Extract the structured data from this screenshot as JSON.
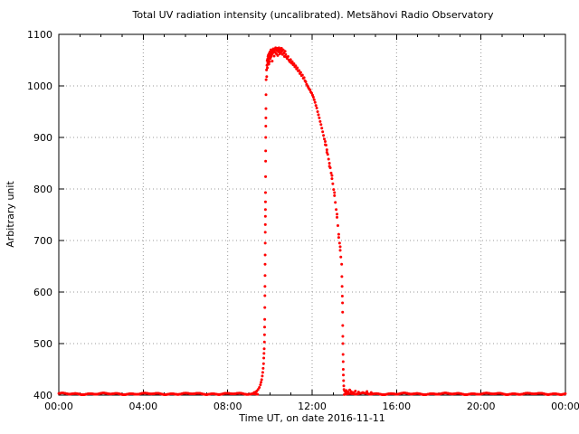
{
  "chart_data": {
    "type": "scatter",
    "title": "Total UV radiation intensity (uncalibrated). Metsähovi Radio Observatory",
    "xlabel": "Time UT, on date 2016-11-11",
    "ylabel": "Arbitrary unit",
    "xlim": [
      0,
      24
    ],
    "ylim": [
      400,
      1100
    ],
    "x_ticks": [
      {
        "t": 0,
        "label": "00:00"
      },
      {
        "t": 4,
        "label": "04:00"
      },
      {
        "t": 8,
        "label": "08:00"
      },
      {
        "t": 12,
        "label": "12:00"
      },
      {
        "t": 16,
        "label": "16:00"
      },
      {
        "t": 20,
        "label": "20:00"
      },
      {
        "t": 24,
        "label": "00:00"
      }
    ],
    "x_minor_step_hours": 1,
    "y_ticks": [
      {
        "v": 400,
        "label": "400"
      },
      {
        "v": 500,
        "label": "500"
      },
      {
        "v": 600,
        "label": "600"
      },
      {
        "v": 700,
        "label": "700"
      },
      {
        "v": 800,
        "label": "800"
      },
      {
        "v": 900,
        "label": "900"
      },
      {
        "v": 1000,
        "label": "1000"
      },
      {
        "v": 1100,
        "label": "1100"
      }
    ],
    "grid": {
      "style": "dotted",
      "color": "#9a9a9a",
      "x_lines_hours": [
        4,
        8,
        12,
        16,
        20
      ],
      "y_lines": [
        500,
        600,
        700,
        800,
        900,
        1000
      ]
    },
    "legend": "none",
    "series": [
      {
        "name": "uv-intensity",
        "marker": "dot",
        "marker_color": "#ff0000",
        "marker_radius": 1.5,
        "baseline_segments": [
          {
            "t_start": 0.0,
            "t_end": 9.42,
            "value": 402.5,
            "step": 0.02,
            "noise_amp": 1.3
          },
          {
            "t_start": 13.52,
            "t_end": 24.0,
            "value": 402.5,
            "step": 0.02,
            "noise_amp": 1.3
          }
        ],
        "points": [
          [
            9.25,
            405
          ],
          [
            9.32,
            406
          ],
          [
            9.38,
            408
          ],
          [
            9.44,
            411
          ],
          [
            9.5,
            415
          ],
          [
            9.55,
            420
          ],
          [
            9.58,
            425
          ],
          [
            9.61,
            430
          ],
          [
            9.64,
            437
          ],
          [
            9.66,
            444
          ],
          [
            9.68,
            452
          ],
          [
            9.7,
            461
          ],
          [
            9.71,
            472
          ],
          [
            9.72,
            481
          ],
          [
            9.73,
            490
          ],
          [
            9.74,
            503
          ],
          [
            9.745,
            517
          ],
          [
            9.75,
            532
          ],
          [
            9.755,
            547
          ],
          [
            9.76,
            570
          ],
          [
            9.763,
            593
          ],
          [
            9.766,
            611
          ],
          [
            9.77,
            632
          ],
          [
            9.772,
            654
          ],
          [
            9.775,
            672
          ],
          [
            9.778,
            695
          ],
          [
            9.78,
            716
          ],
          [
            9.783,
            731
          ],
          [
            9.786,
            747
          ],
          [
            9.788,
            760
          ],
          [
            9.79,
            775
          ],
          [
            9.792,
            793
          ],
          [
            9.795,
            824
          ],
          [
            9.798,
            854
          ],
          [
            9.8,
            874
          ],
          [
            9.803,
            900
          ],
          [
            9.806,
            922
          ],
          [
            9.81,
            938
          ],
          [
            9.813,
            956
          ],
          [
            9.816,
            983
          ],
          [
            9.82,
            1012
          ],
          [
            9.84,
            1031
          ],
          [
            9.85,
            1018
          ],
          [
            9.86,
            1040
          ],
          [
            9.87,
            1049
          ],
          [
            9.88,
            1035
          ],
          [
            9.89,
            1052
          ],
          [
            9.9,
            1044
          ],
          [
            9.91,
            1057
          ],
          [
            9.92,
            1047
          ],
          [
            9.93,
            1060
          ],
          [
            9.94,
            1050
          ],
          [
            9.95,
            1042
          ],
          [
            9.96,
            1055
          ],
          [
            9.97,
            1063
          ],
          [
            9.98,
            1047
          ],
          [
            9.99,
            1058
          ],
          [
            10.0,
            1066
          ],
          [
            10.02,
            1053
          ],
          [
            10.03,
            1062
          ],
          [
            10.05,
            1070
          ],
          [
            10.06,
            1057
          ],
          [
            10.08,
            1065
          ],
          [
            10.09,
            1061
          ],
          [
            10.11,
            1048
          ],
          [
            10.12,
            1069
          ],
          [
            10.14,
            1064
          ],
          [
            10.16,
            1072
          ],
          [
            10.18,
            1068
          ],
          [
            10.2,
            1058
          ],
          [
            10.22,
            1071
          ],
          [
            10.25,
            1065
          ],
          [
            10.27,
            1074
          ],
          [
            10.29,
            1070
          ],
          [
            10.31,
            1062
          ],
          [
            10.33,
            1073
          ],
          [
            10.35,
            1068
          ],
          [
            10.37,
            1059
          ],
          [
            10.39,
            1072
          ],
          [
            10.41,
            1066
          ],
          [
            10.43,
            1074
          ],
          [
            10.45,
            1069
          ],
          [
            10.47,
            1062
          ],
          [
            10.5,
            1071
          ],
          [
            10.52,
            1065
          ],
          [
            10.55,
            1073
          ],
          [
            10.57,
            1068
          ],
          [
            10.6,
            1061
          ],
          [
            10.63,
            1070
          ],
          [
            10.66,
            1064
          ],
          [
            10.69,
            1057
          ],
          [
            10.72,
            1067
          ],
          [
            10.75,
            1061
          ],
          [
            10.78,
            1056
          ],
          [
            10.82,
            1053
          ],
          [
            10.86,
            1057
          ],
          [
            10.9,
            1050
          ],
          [
            10.94,
            1047
          ],
          [
            10.98,
            1051
          ],
          [
            11.02,
            1044
          ],
          [
            11.06,
            1047
          ],
          [
            11.1,
            1041
          ],
          [
            11.14,
            1043
          ],
          [
            11.18,
            1037
          ],
          [
            11.22,
            1039
          ],
          [
            11.26,
            1033
          ],
          [
            11.3,
            1035
          ],
          [
            11.34,
            1029
          ],
          [
            11.38,
            1030
          ],
          [
            11.42,
            1024
          ],
          [
            11.46,
            1026
          ],
          [
            11.5,
            1020
          ],
          [
            11.54,
            1021
          ],
          [
            11.58,
            1015
          ],
          [
            11.62,
            1016
          ],
          [
            11.66,
            1010
          ],
          [
            11.7,
            1008
          ],
          [
            11.74,
            1003
          ],
          [
            11.78,
            1000
          ],
          [
            11.82,
            997
          ],
          [
            11.86,
            994
          ],
          [
            11.9,
            992
          ],
          [
            11.94,
            988
          ],
          [
            11.98,
            986
          ],
          [
            12.02,
            982
          ],
          [
            12.06,
            978
          ],
          [
            12.1,
            973
          ],
          [
            12.14,
            968
          ],
          [
            12.18,
            962
          ],
          [
            12.22,
            957
          ],
          [
            12.26,
            950
          ],
          [
            12.3,
            944
          ],
          [
            12.34,
            938
          ],
          [
            12.38,
            931
          ],
          [
            12.42,
            925
          ],
          [
            12.46,
            918
          ],
          [
            12.5,
            911
          ],
          [
            12.54,
            904
          ],
          [
            12.58,
            897
          ],
          [
            12.62,
            892
          ],
          [
            12.62,
            886
          ],
          [
            12.66,
            885
          ],
          [
            12.7,
            876
          ],
          [
            12.7,
            871
          ],
          [
            12.74,
            867
          ],
          [
            12.78,
            858
          ],
          [
            12.82,
            850
          ],
          [
            12.82,
            844
          ],
          [
            12.86,
            841
          ],
          [
            12.9,
            831
          ],
          [
            12.94,
            820
          ],
          [
            12.94,
            826
          ],
          [
            12.98,
            810
          ],
          [
            13.02,
            799
          ],
          [
            13.06,
            787
          ],
          [
            13.06,
            793
          ],
          [
            13.1,
            774
          ],
          [
            13.14,
            760
          ],
          [
            13.18,
            745
          ],
          [
            13.18,
            751
          ],
          [
            13.22,
            729
          ],
          [
            13.26,
            712
          ],
          [
            13.26,
            706
          ],
          [
            13.3,
            695
          ],
          [
            13.33,
            681
          ],
          [
            13.33,
            688
          ],
          [
            13.36,
            668
          ],
          [
            13.4,
            654
          ],
          [
            13.41,
            630
          ],
          [
            13.42,
            611
          ],
          [
            13.43,
            592
          ],
          [
            13.44,
            579
          ],
          [
            13.445,
            561
          ],
          [
            13.45,
            535
          ],
          [
            13.455,
            514
          ],
          [
            13.46,
            500
          ],
          [
            13.465,
            479
          ],
          [
            13.47,
            465
          ],
          [
            13.475,
            450
          ],
          [
            13.48,
            439
          ],
          [
            13.49,
            428
          ],
          [
            13.5,
            418
          ],
          [
            13.51,
            411
          ],
          [
            13.54,
            408
          ],
          [
            13.58,
            406
          ],
          [
            13.63,
            409
          ],
          [
            13.7,
            406
          ],
          [
            13.78,
            410
          ],
          [
            13.85,
            407
          ],
          [
            13.95,
            405
          ],
          [
            14.05,
            408
          ],
          [
            14.2,
            406
          ],
          [
            14.4,
            405
          ],
          [
            14.6,
            407
          ],
          [
            14.8,
            405
          ]
        ]
      }
    ]
  }
}
